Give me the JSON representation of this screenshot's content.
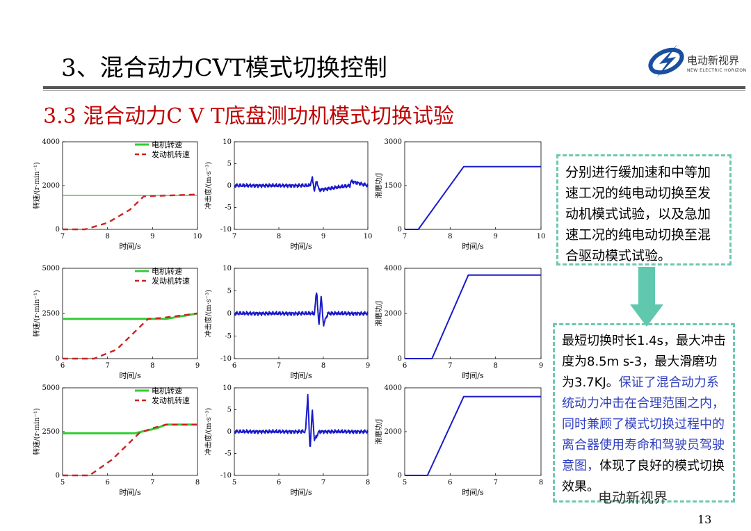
{
  "header": {
    "title": "3、混合动力CVT模式切换控制",
    "subtitle": "3.3 混合动力C V T底盘测功机模式切换试验",
    "logo_text": "电动新视界",
    "logo_sub": "NEW ELECTRIC HORIZON"
  },
  "text_box_1": "分别进行缓加速和中等加速工况的纯电动切换至发动机模式试验，以及急加速工况的纯电动切换至混合驱动模式试验。",
  "text_box_2": {
    "black": "最短切换时长1.4s，最大冲击度为8.5m s-3，最大滑磨功为3.7KJ。",
    "blue": "保证了混合动力系统动力冲击在合理范围之内，同时兼顾了模式切换过程中的离合器使用寿命和驾驶员驾驶意图，",
    "black_end": "体现了良好的模式切换效果。"
  },
  "watermark": "电动新视界",
  "page_number": "13",
  "colors": {
    "motor": "#33cc33",
    "engine": "#cc2222",
    "jerk": "#1a1acc",
    "slip": "#1a1acc",
    "accent": "#c00000",
    "box_border": "#6cc8b0"
  },
  "chart_data": [
    {
      "type": "line",
      "row": 0,
      "xlabel": "时间/s",
      "ylabel": "转速/(r·min⁻¹)",
      "xlim": [
        7,
        10
      ],
      "ylim": [
        0,
        4000
      ],
      "xticks": [
        "7",
        "8",
        "9",
        "10"
      ],
      "yticks": [
        "0",
        "2000",
        "4000"
      ],
      "legend": [
        "电机转速",
        "发动机转速"
      ],
      "series": [
        {
          "name": "电机转速",
          "x": [
            7,
            10
          ],
          "y": [
            1550,
            1550
          ]
        },
        {
          "name": "发动机转速",
          "x": [
            7,
            7.5,
            8,
            8.5,
            8.8,
            9,
            10
          ],
          "y": [
            0,
            0,
            300,
            900,
            1500,
            1520,
            1600
          ]
        }
      ]
    },
    {
      "type": "line",
      "row": 0,
      "xlabel": "时间/s",
      "ylabel": "冲击度/(m·s⁻³)",
      "xlim": [
        7,
        10
      ],
      "ylim": [
        -10,
        10
      ],
      "xticks": [
        "7",
        "8",
        "9",
        "10"
      ],
      "yticks": [
        "-10",
        "-5",
        "0",
        "5",
        "10"
      ],
      "series": [
        {
          "x": [
            7,
            8.7,
            8.75,
            8.8,
            8.85,
            8.9,
            9.6,
            9.62,
            10
          ],
          "y": [
            0,
            0,
            1.8,
            -1.2,
            1.2,
            -1.0,
            0,
            1.0,
            0
          ]
        }
      ]
    },
    {
      "type": "line",
      "row": 0,
      "xlabel": "时间/s",
      "ylabel": "滑磨功/J",
      "xlim": [
        7,
        10
      ],
      "ylim": [
        0,
        3000
      ],
      "xticks": [
        "7",
        "8",
        "9",
        "10"
      ],
      "yticks": [
        "0",
        "1500",
        "3000"
      ],
      "series": [
        {
          "x": [
            7,
            7.3,
            8.3,
            10
          ],
          "y": [
            0,
            0,
            2150,
            2150
          ]
        }
      ]
    },
    {
      "type": "line",
      "row": 1,
      "xlabel": "时间/s",
      "ylabel": "转速/(r·min⁻¹)",
      "xlim": [
        6,
        9
      ],
      "ylim": [
        0,
        5000
      ],
      "xticks": [
        "6",
        "7",
        "8",
        "9"
      ],
      "yticks": [
        "0",
        "2500",
        "5000"
      ],
      "legend": [
        "电机转速",
        "发动机转速"
      ],
      "series": [
        {
          "name": "电机转速",
          "x": [
            6,
            8.3,
            9
          ],
          "y": [
            2200,
            2200,
            2500
          ]
        },
        {
          "name": "发动机转速",
          "x": [
            6,
            6.7,
            7.2,
            7.9,
            8.2,
            9
          ],
          "y": [
            0,
            0,
            500,
            2200,
            2250,
            2500
          ]
        }
      ]
    },
    {
      "type": "line",
      "row": 1,
      "xlabel": "时间/s",
      "ylabel": "冲击度/(m·s⁻³)",
      "xlim": [
        6,
        9
      ],
      "ylim": [
        -10,
        10
      ],
      "xticks": [
        "6",
        "7",
        "8",
        "9"
      ],
      "yticks": [
        "-10",
        "-5",
        "0",
        "5",
        "10"
      ],
      "series": [
        {
          "x": [
            6,
            7.8,
            7.85,
            7.9,
            7.95,
            8.0,
            8.1,
            9
          ],
          "y": [
            0,
            0,
            5.2,
            -3.0,
            4.0,
            -2.5,
            0,
            0
          ]
        }
      ]
    },
    {
      "type": "line",
      "row": 1,
      "xlabel": "时间/s",
      "ylabel": "滑磨功/J",
      "xlim": [
        6,
        9
      ],
      "ylim": [
        0,
        4000
      ],
      "xticks": [
        "6",
        "7",
        "8",
        "9"
      ],
      "yticks": [
        "0",
        "2000",
        "4000"
      ],
      "series": [
        {
          "x": [
            6,
            6.6,
            7.4,
            9
          ],
          "y": [
            0,
            0,
            3700,
            3700
          ]
        }
      ]
    },
    {
      "type": "line",
      "row": 2,
      "xlabel": "时间/s",
      "ylabel": "转速/(r·min⁻¹)",
      "xlim": [
        5,
        8
      ],
      "ylim": [
        0,
        5000
      ],
      "xticks": [
        "5",
        "6",
        "7",
        "8"
      ],
      "yticks": [
        "0",
        "2500",
        "5000"
      ],
      "legend": [
        "电机转速",
        "发动机转速"
      ],
      "series": [
        {
          "name": "电机转速",
          "x": [
            5,
            6.6,
            7.1,
            7.3,
            8
          ],
          "y": [
            2400,
            2400,
            2700,
            2900,
            2900
          ]
        },
        {
          "name": "发动机转速",
          "x": [
            5,
            5.6,
            6.1,
            6.7,
            7.0,
            7.3,
            8
          ],
          "y": [
            0,
            0,
            900,
            2400,
            2700,
            2900,
            2900
          ]
        }
      ]
    },
    {
      "type": "line",
      "row": 2,
      "xlabel": "时间/s",
      "ylabel": "冲击度/(m·s⁻³)",
      "xlim": [
        5,
        8
      ],
      "ylim": [
        -10,
        10
      ],
      "xticks": [
        "5",
        "6",
        "7",
        "8"
      ],
      "yticks": [
        "-10",
        "-5",
        "0",
        "5",
        "10"
      ],
      "series": [
        {
          "x": [
            5,
            6.6,
            6.65,
            6.7,
            6.75,
            6.8,
            6.9,
            8
          ],
          "y": [
            0,
            0,
            8.5,
            -4.5,
            5.0,
            -2.0,
            0,
            0
          ]
        }
      ]
    },
    {
      "type": "line",
      "row": 2,
      "xlabel": "时间/s",
      "ylabel": "滑磨功/J",
      "xlim": [
        5,
        8
      ],
      "ylim": [
        0,
        4000
      ],
      "xticks": [
        "5",
        "6",
        "7",
        "8"
      ],
      "yticks": [
        "0",
        "2000",
        "4000"
      ],
      "series": [
        {
          "x": [
            5,
            5.5,
            6.3,
            8
          ],
          "y": [
            0,
            0,
            3600,
            3600
          ]
        }
      ]
    }
  ]
}
